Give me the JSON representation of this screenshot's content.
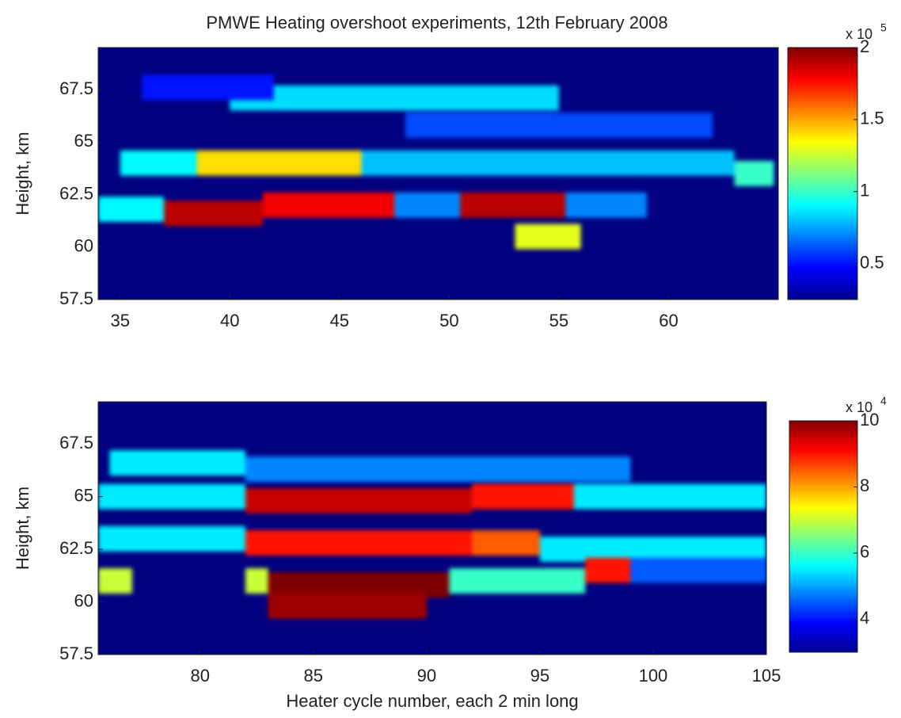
{
  "chart_data": [
    {
      "type": "heatmap",
      "title": "PMWE Heating overshoot experiments, 12th February 2008",
      "ylabel": "Height, km",
      "xlim": [
        34,
        65
      ],
      "ylim": [
        57.5,
        69.5
      ],
      "xticks": [
        35,
        40,
        45,
        50,
        55,
        60
      ],
      "yticks": [
        57.5,
        60,
        62.5,
        65,
        67.5
      ],
      "colorbar": {
        "clim": [
          0.25,
          2
        ],
        "ticks": [
          0.5,
          1,
          1.5,
          2
        ],
        "multiplier": "x 10",
        "exponent": "5"
      },
      "x_start": [
        35,
        38.5,
        46,
        63,
        34,
        37,
        41.5,
        47.5,
        50.5,
        55.3,
        53,
        40,
        48,
        36
      ],
      "x_end": [
        38.5,
        46,
        63,
        64.8,
        37,
        41.5,
        47.5,
        50.5,
        55.3,
        59,
        56,
        55,
        62,
        42
      ],
      "y": [
        64,
        64,
        64,
        63.5,
        61.8,
        61.6,
        62,
        62,
        62,
        62,
        60.5,
        67.1,
        65.8,
        67.6
      ],
      "values": [
        0.9,
        1.4,
        0.8,
        1.0,
        0.9,
        1.9,
        1.8,
        0.7,
        1.9,
        0.7,
        1.3,
        0.85,
        0.6,
        0.5
      ]
    },
    {
      "type": "heatmap",
      "xlabel": "Heater cycle number, each 2 min long",
      "ylabel": "Height, km",
      "xlim": [
        75.5,
        105
      ],
      "ylim": [
        57.5,
        69.5
      ],
      "xticks": [
        80,
        85,
        90,
        95,
        100,
        105
      ],
      "yticks": [
        57.5,
        60,
        62.5,
        65,
        67.5
      ],
      "colorbar": {
        "clim": [
          3,
          10
        ],
        "ticks": [
          4,
          6,
          8,
          10
        ],
        "multiplier": "x 10",
        "exponent": "4"
      },
      "x_start": [
        76,
        82,
        75.5,
        82,
        92,
        96.5,
        75.5,
        82,
        92,
        95,
        75.5,
        82,
        83,
        83,
        91,
        97,
        99
      ],
      "x_end": [
        82,
        99,
        82,
        92,
        96.5,
        105,
        82,
        92,
        95,
        105,
        77,
        83,
        91,
        90,
        97,
        99,
        105
      ],
      "y": [
        66.6,
        66.3,
        65,
        64.8,
        65,
        65,
        63,
        62.8,
        62.8,
        62.5,
        61,
        61,
        60.8,
        59.8,
        61,
        61.5,
        61.5
      ],
      "values": [
        5.5,
        4.8,
        5.5,
        9.5,
        9,
        5.5,
        5.5,
        9,
        8.5,
        5.5,
        7,
        7,
        10,
        9.8,
        6,
        9,
        4.5
      ]
    }
  ]
}
